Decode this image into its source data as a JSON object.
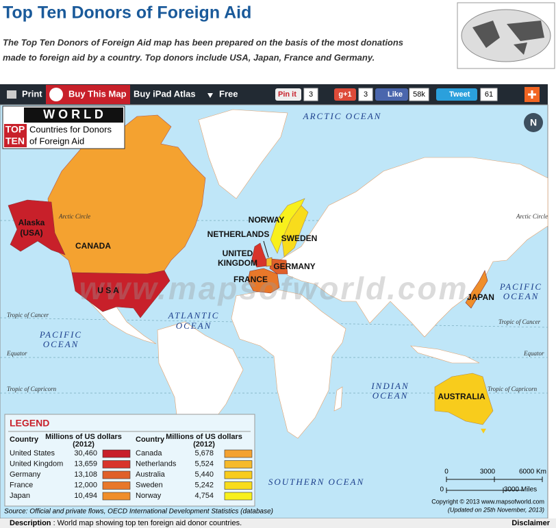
{
  "header": {
    "title": "Top Ten Donors of Foreign Aid",
    "subtitle": [
      "The Top Ten Donors of Foreign Aid map has been prepared on the basis of the most donations",
      "made to foreign aid by a country. Top donors include USA, Japan, France and Germany."
    ]
  },
  "toolbar": {
    "print": "Print",
    "buy_map": "Buy This Map",
    "buy_ipad": "Buy iPad Atlas",
    "free": "Free",
    "pinit": "Pin it",
    "pinit_count": "3",
    "gplus": "g+1",
    "gplus_count": "3",
    "like": "Like",
    "like_count": "58k",
    "tweet": "Tweet",
    "tweet_count": "61"
  },
  "map": {
    "badge": {
      "world": "W O R L D",
      "top": "TOP",
      "ten": "TEN",
      "subtitle": [
        "Countries for Donors",
        "of Foreign Aid"
      ]
    },
    "watermark": "www.mapsofworld.com",
    "oceans": {
      "arctic": "ARCTIC   OCEAN",
      "atlantic": [
        "ATLANTIC",
        "OCEAN"
      ],
      "pacific_west": [
        "PACIFIC",
        "OCEAN"
      ],
      "pacific_east": [
        "PACIFIC",
        "OCEAN"
      ],
      "indian": [
        "INDIAN",
        "OCEAN"
      ],
      "southern": "SOUTHERN OCEAN"
    },
    "lines": {
      "arctic_circle": "Arctic Circle",
      "tropic_cancer": "Tropic of Cancer",
      "equator": "Equator",
      "tropic_capricorn": "Tropic of Capricorn"
    },
    "countries": {
      "alaska": [
        "Alaska",
        "(USA)"
      ],
      "canada": "CANADA",
      "usa": "U S A",
      "norway": "NORWAY",
      "sweden": "SWEDEN",
      "netherlands": "NETHERLANDS",
      "uk": [
        "UNITED",
        "KINGDOM"
      ],
      "germany": "GERMANY",
      "france": "FRANCE",
      "japan": "JAPAN",
      "australia": "AUSTRALIA"
    }
  },
  "legend": {
    "title": "LEGEND",
    "col_country": "Country",
    "col_value": [
      "Millions of US dollars",
      "(2012)"
    ],
    "rows": [
      {
        "country": "United States",
        "value": "30,460",
        "color": "#c8202a"
      },
      {
        "country": "United Kingdom",
        "value": "13,659",
        "color": "#d8342a"
      },
      {
        "country": "Germany",
        "value": "13,108",
        "color": "#e0602a"
      },
      {
        "country": "France",
        "value": "12,000",
        "color": "#e8782a"
      },
      {
        "country": "Japan",
        "value": "10,494",
        "color": "#ef8e2a"
      },
      {
        "country": "Canada",
        "value": "5,678",
        "color": "#f4a230"
      },
      {
        "country": "Netherlands",
        "value": "5,524",
        "color": "#f6ba2a"
      },
      {
        "country": "Australia",
        "value": "5,440",
        "color": "#f8cc1c"
      },
      {
        "country": "Sweden",
        "value": "5,242",
        "color": "#f8dc1c"
      },
      {
        "country": "Norway",
        "value": "4,754",
        "color": "#f8f01c"
      }
    ]
  },
  "scale": {
    "km": [
      "0",
      "3000",
      "6000 Km"
    ],
    "miles": [
      "0",
      "3000 Miles"
    ]
  },
  "copyright": "Copyright © 2013  www.mapsofworld.com",
  "updated": "(Updated on 25th November, 2013)",
  "source": "Source: Official and private flows, OECD International Development Statistics (database)",
  "footer": {
    "label": "Description",
    "text": " : World map showing top ten foreign aid donor countries.",
    "disclaimer": "Disclaimer"
  }
}
